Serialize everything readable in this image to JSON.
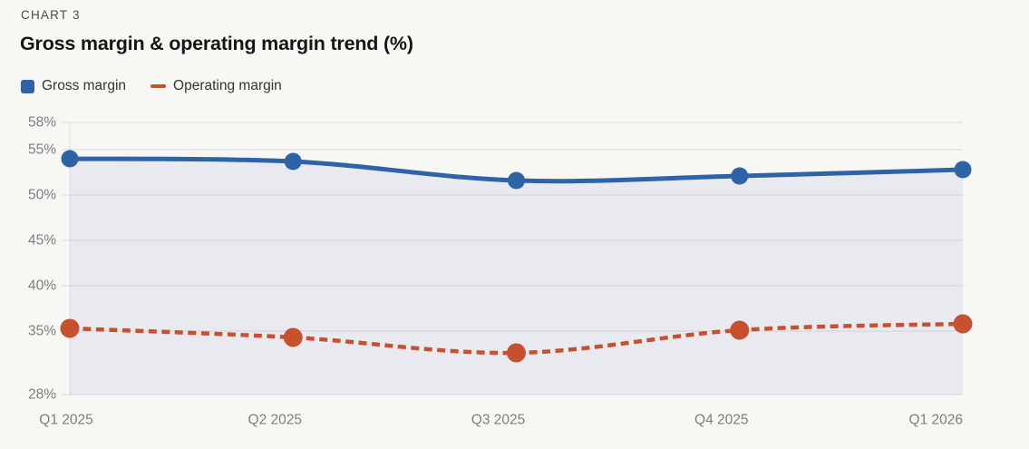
{
  "header": {
    "eyebrow": "CHART 3",
    "title": "Gross margin & operating margin trend (%)"
  },
  "legend": [
    {
      "label": "Gross margin",
      "swatch": "square",
      "color": "#2e63a7"
    },
    {
      "label": "Operating margin",
      "swatch": "dash",
      "color": "#c7512f"
    }
  ],
  "chart_data": {
    "type": "line",
    "title": "Gross margin & operating margin trend (%)",
    "categories": [
      "Q1 2025",
      "Q2 2025",
      "Q3 2025",
      "Q4 2025",
      "Q1 2026"
    ],
    "series": [
      {
        "name": "Gross margin",
        "values": [
          54.0,
          53.7,
          51.6,
          52.1,
          52.8
        ],
        "color": "#2e63a7",
        "style": "solid",
        "line_width": 5,
        "marker_radius": 9.5,
        "area": true
      },
      {
        "name": "Operating margin",
        "values": [
          35.3,
          34.3,
          32.6,
          35.1,
          35.8
        ],
        "color": "#c7512f",
        "style": "dashed",
        "line_width": 4.5,
        "marker_radius": 10.5,
        "area": false
      }
    ],
    "yticks": [
      58,
      55,
      50,
      45,
      40,
      35,
      28
    ],
    "ylim": [
      28,
      58
    ],
    "ytick_format": "{v}%",
    "xlabel": "",
    "ylabel": "",
    "grid": true,
    "legend_position": "top",
    "area_fill_color": "#e8eaef",
    "grid_color": "rgba(120,125,135,0.22)",
    "axis_label_color": "#7c7e82",
    "background_color": "#f7f7f4"
  }
}
